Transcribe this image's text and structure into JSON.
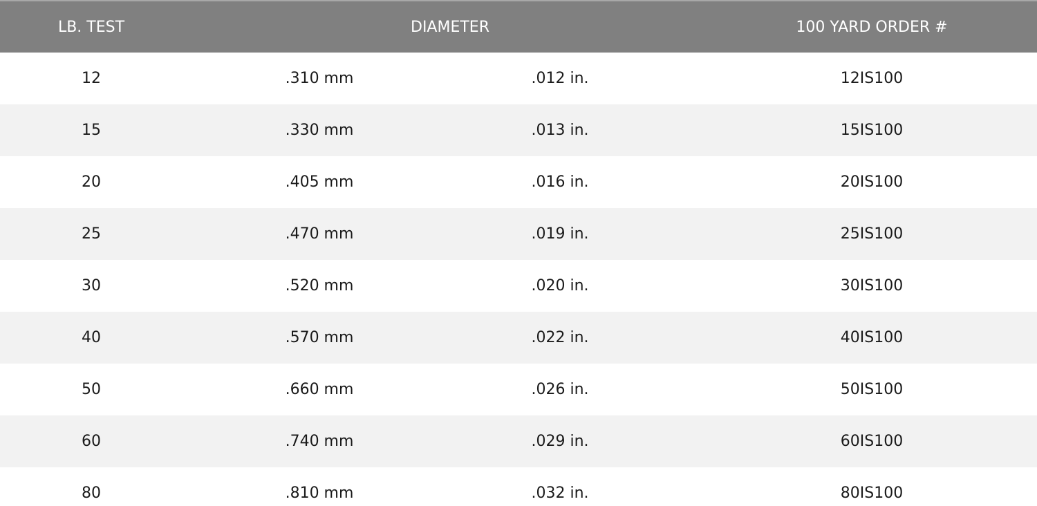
{
  "headers": {
    "lb_test": "LB. TEST",
    "diameter": "DIAMETER",
    "order": "100 YARD ORDER #"
  },
  "rows": [
    {
      "lb": "12",
      "mm": ".310 mm",
      "in": ".012 in.",
      "order": "12IS100"
    },
    {
      "lb": "15",
      "mm": ".330 mm",
      "in": ".013 in.",
      "order": "15IS100"
    },
    {
      "lb": "20",
      "mm": ".405 mm",
      "in": ".016 in.",
      "order": "20IS100"
    },
    {
      "lb": "25",
      "mm": ".470 mm",
      "in": ".019 in.",
      "order": "25IS100"
    },
    {
      "lb": "30",
      "mm": ".520 mm",
      "in": ".020 in.",
      "order": "30IS100"
    },
    {
      "lb": "40",
      "mm": ".570 mm",
      "in": ".022 in.",
      "order": "40IS100"
    },
    {
      "lb": "50",
      "mm": ".660 mm",
      "in": ".026 in.",
      "order": "50IS100"
    },
    {
      "lb": "60",
      "mm": ".740 mm",
      "in": ".029 in.",
      "order": "60IS100"
    },
    {
      "lb": "80",
      "mm": ".810 mm",
      "in": ".032 in.",
      "order": "80IS100"
    }
  ],
  "colors": {
    "header_bg": "#808080",
    "alt_row_bg": "#f2f2f2"
  }
}
